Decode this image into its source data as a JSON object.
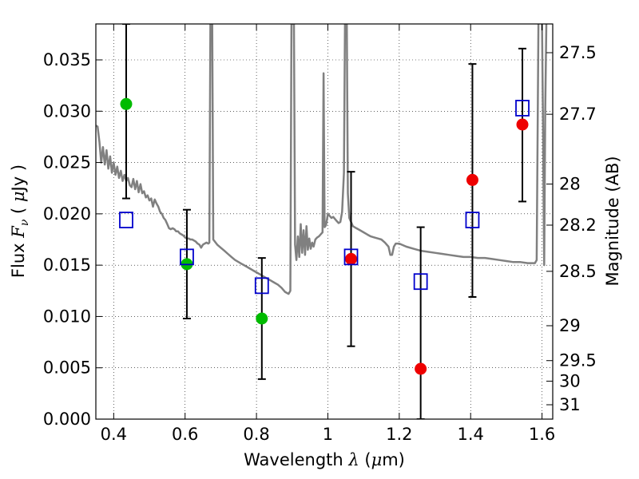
{
  "chart_data": {
    "type": "scatter",
    "xlabel": {
      "prefix": "Wavelength  ",
      "symbol": "λ",
      "suffix": " (",
      "unit_mu": "μ",
      "unit_rest": "m)"
    },
    "ylabel": {
      "prefix": "Flux  ",
      "symbol": "F",
      "sub": "ν",
      "mid": "  ( ",
      "unit_mu": "μ",
      "unit_rest": "Jy )"
    },
    "y2label": "Magnitude (AB)",
    "xlim": [
      0.35,
      1.63
    ],
    "ylim": [
      0.0,
      0.0385
    ],
    "grid": true,
    "x_ticks": [
      {
        "v": 0.4,
        "label": "0.4"
      },
      {
        "v": 0.6,
        "label": "0.6"
      },
      {
        "v": 0.8,
        "label": "0.8"
      },
      {
        "v": 1.0,
        "label": "1"
      },
      {
        "v": 1.2,
        "label": "1.2"
      },
      {
        "v": 1.4,
        "label": "1.4"
      },
      {
        "v": 1.6,
        "label": "1.6"
      }
    ],
    "y_ticks": [
      {
        "v": 0.0,
        "label": "0.000"
      },
      {
        "v": 0.005,
        "label": "0.005"
      },
      {
        "v": 0.01,
        "label": "0.010"
      },
      {
        "v": 0.015,
        "label": "0.015"
      },
      {
        "v": 0.02,
        "label": "0.020"
      },
      {
        "v": 0.025,
        "label": "0.025"
      },
      {
        "v": 0.03,
        "label": "0.030"
      },
      {
        "v": 0.035,
        "label": "0.035"
      }
    ],
    "y2_ticks": [
      {
        "flux": 0.0357,
        "label": "27.5"
      },
      {
        "flux": 0.0297,
        "label": "27.7"
      },
      {
        "flux": 0.0229,
        "label": "28"
      },
      {
        "flux": 0.0189,
        "label": "28.2"
      },
      {
        "flux": 0.0144,
        "label": "28.5"
      },
      {
        "flux": 0.0091,
        "label": "29"
      },
      {
        "flux": 0.0057,
        "label": "29.5"
      },
      {
        "flux": 0.0037,
        "label": "30"
      },
      {
        "flux": 0.0014,
        "label": "31"
      }
    ],
    "series": [
      {
        "type": "errorbar",
        "color": "#000000",
        "points": [
          {
            "x": 0.435,
            "y": 0.0307,
            "lo": 0.0215,
            "hi": 0.0385
          },
          {
            "x": 0.605,
            "y": 0.0151,
            "lo": 0.0098,
            "hi": 0.0204
          },
          {
            "x": 0.815,
            "y": 0.0098,
            "lo": 0.0039,
            "hi": 0.0157
          },
          {
            "x": 1.065,
            "y": 0.0156,
            "lo": 0.0071,
            "hi": 0.0241
          },
          {
            "x": 1.26,
            "y": 0.0049,
            "lo": 0.0,
            "hi": 0.0187
          },
          {
            "x": 1.405,
            "y": 0.0233,
            "lo": 0.0119,
            "hi": 0.0346
          },
          {
            "x": 1.545,
            "y": 0.0287,
            "lo": 0.0212,
            "hi": 0.0361
          }
        ]
      },
      {
        "type": "scatter",
        "marker": "circle",
        "color": "#00bb00",
        "points": [
          {
            "x": 0.435,
            "y": 0.0307
          },
          {
            "x": 0.605,
            "y": 0.0151
          },
          {
            "x": 0.815,
            "y": 0.0098
          }
        ]
      },
      {
        "type": "scatter",
        "marker": "circle",
        "color": "#ee0000",
        "points": [
          {
            "x": 1.065,
            "y": 0.0156
          },
          {
            "x": 1.26,
            "y": 0.0049
          },
          {
            "x": 1.405,
            "y": 0.0233
          },
          {
            "x": 1.545,
            "y": 0.0287
          }
        ]
      },
      {
        "type": "scatter",
        "marker": "open-square",
        "color": "#0000cc",
        "points": [
          {
            "x": 0.435,
            "y": 0.0194
          },
          {
            "x": 0.605,
            "y": 0.0158
          },
          {
            "x": 0.815,
            "y": 0.013
          },
          {
            "x": 1.065,
            "y": 0.0158
          },
          {
            "x": 1.26,
            "y": 0.0134
          },
          {
            "x": 1.405,
            "y": 0.0194
          },
          {
            "x": 1.545,
            "y": 0.0303
          }
        ]
      },
      {
        "type": "line",
        "color": "#808080",
        "points": [
          [
            0.35,
            0.0286
          ],
          [
            0.355,
            0.0285
          ],
          [
            0.36,
            0.027
          ],
          [
            0.365,
            0.025
          ],
          [
            0.37,
            0.0265
          ],
          [
            0.375,
            0.0248
          ],
          [
            0.38,
            0.0262
          ],
          [
            0.385,
            0.0244
          ],
          [
            0.39,
            0.0256
          ],
          [
            0.395,
            0.024
          ],
          [
            0.4,
            0.025
          ],
          [
            0.405,
            0.0238
          ],
          [
            0.41,
            0.0246
          ],
          [
            0.415,
            0.0235
          ],
          [
            0.42,
            0.0242
          ],
          [
            0.425,
            0.0232
          ],
          [
            0.43,
            0.0238
          ],
          [
            0.435,
            0.0232
          ],
          [
            0.44,
            0.0235
          ],
          [
            0.445,
            0.0228
          ],
          [
            0.45,
            0.0226
          ],
          [
            0.455,
            0.0234
          ],
          [
            0.46,
            0.0224
          ],
          [
            0.465,
            0.0232
          ],
          [
            0.47,
            0.0221
          ],
          [
            0.475,
            0.0229
          ],
          [
            0.48,
            0.022
          ],
          [
            0.485,
            0.0222
          ],
          [
            0.49,
            0.0216
          ],
          [
            0.495,
            0.0218
          ],
          [
            0.5,
            0.0213
          ],
          [
            0.505,
            0.0215
          ],
          [
            0.51,
            0.0207
          ],
          [
            0.515,
            0.0214
          ],
          [
            0.52,
            0.021
          ],
          [
            0.525,
            0.0207
          ],
          [
            0.53,
            0.0202
          ],
          [
            0.535,
            0.02
          ],
          [
            0.54,
            0.0196
          ],
          [
            0.545,
            0.0194
          ],
          [
            0.55,
            0.019
          ],
          [
            0.555,
            0.0186
          ],
          [
            0.56,
            0.0185
          ],
          [
            0.565,
            0.0186
          ],
          [
            0.57,
            0.0185
          ],
          [
            0.575,
            0.0183
          ],
          [
            0.58,
            0.0183
          ],
          [
            0.585,
            0.0181
          ],
          [
            0.59,
            0.018
          ],
          [
            0.595,
            0.0179
          ],
          [
            0.6,
            0.0177
          ],
          [
            0.605,
            0.0176
          ],
          [
            0.61,
            0.0176
          ],
          [
            0.615,
            0.0175
          ],
          [
            0.62,
            0.0175
          ],
          [
            0.625,
            0.0174
          ],
          [
            0.63,
            0.0173
          ],
          [
            0.635,
            0.0171
          ],
          [
            0.64,
            0.017
          ],
          [
            0.645,
            0.0167
          ],
          [
            0.65,
            0.017
          ],
          [
            0.655,
            0.0171
          ],
          [
            0.66,
            0.0172
          ],
          [
            0.665,
            0.0171
          ],
          [
            0.668,
            0.0172
          ],
          [
            0.671,
            0.0385
          ],
          [
            0.676,
            0.0385
          ],
          [
            0.679,
            0.0175
          ],
          [
            0.69,
            0.017
          ],
          [
            0.7,
            0.0167
          ],
          [
            0.71,
            0.0164
          ],
          [
            0.72,
            0.0161
          ],
          [
            0.73,
            0.0158
          ],
          [
            0.74,
            0.0155
          ],
          [
            0.75,
            0.0153
          ],
          [
            0.76,
            0.0151
          ],
          [
            0.77,
            0.0149
          ],
          [
            0.78,
            0.0147
          ],
          [
            0.79,
            0.0145
          ],
          [
            0.8,
            0.0143
          ],
          [
            0.81,
            0.0141
          ],
          [
            0.82,
            0.0139
          ],
          [
            0.83,
            0.0137
          ],
          [
            0.84,
            0.0135
          ],
          [
            0.85,
            0.0133
          ],
          [
            0.86,
            0.0131
          ],
          [
            0.87,
            0.0128
          ],
          [
            0.88,
            0.0124
          ],
          [
            0.89,
            0.0122
          ],
          [
            0.895,
            0.0125
          ],
          [
            0.898,
            0.0385
          ],
          [
            0.905,
            0.0385
          ],
          [
            0.908,
            0.017
          ],
          [
            0.912,
            0.0155
          ],
          [
            0.916,
            0.0178
          ],
          [
            0.92,
            0.0158
          ],
          [
            0.924,
            0.019
          ],
          [
            0.928,
            0.0162
          ],
          [
            0.932,
            0.0184
          ],
          [
            0.936,
            0.016
          ],
          [
            0.94,
            0.0188
          ],
          [
            0.944,
            0.0165
          ],
          [
            0.948,
            0.0176
          ],
          [
            0.952,
            0.0166
          ],
          [
            0.956,
            0.0172
          ],
          [
            0.96,
            0.0168
          ],
          [
            0.965,
            0.0175
          ],
          [
            0.97,
            0.0177
          ],
          [
            0.975,
            0.0178
          ],
          [
            0.98,
            0.018
          ],
          [
            0.985,
            0.0182
          ],
          [
            0.988,
            0.0337
          ],
          [
            0.991,
            0.0187
          ],
          [
            0.995,
            0.0189
          ],
          [
            1.0,
            0.02
          ],
          [
            1.005,
            0.0198
          ],
          [
            1.01,
            0.0196
          ],
          [
            1.015,
            0.0197
          ],
          [
            1.02,
            0.0195
          ],
          [
            1.025,
            0.0193
          ],
          [
            1.03,
            0.0191
          ],
          [
            1.035,
            0.0192
          ],
          [
            1.04,
            0.0202
          ],
          [
            1.045,
            0.024
          ],
          [
            1.048,
            0.0385
          ],
          [
            1.053,
            0.0385
          ],
          [
            1.056,
            0.022
          ],
          [
            1.06,
            0.0196
          ],
          [
            1.07,
            0.0188
          ],
          [
            1.08,
            0.0186
          ],
          [
            1.09,
            0.0184
          ],
          [
            1.1,
            0.0182
          ],
          [
            1.11,
            0.018
          ],
          [
            1.12,
            0.0178
          ],
          [
            1.13,
            0.0177
          ],
          [
            1.14,
            0.0176
          ],
          [
            1.15,
            0.0175
          ],
          [
            1.16,
            0.0172
          ],
          [
            1.17,
            0.0168
          ],
          [
            1.175,
            0.016
          ],
          [
            1.18,
            0.016
          ],
          [
            1.185,
            0.0168
          ],
          [
            1.19,
            0.0171
          ],
          [
            1.2,
            0.0171
          ],
          [
            1.22,
            0.0168
          ],
          [
            1.24,
            0.0166
          ],
          [
            1.26,
            0.0164
          ],
          [
            1.28,
            0.0163
          ],
          [
            1.3,
            0.0162
          ],
          [
            1.32,
            0.0161
          ],
          [
            1.34,
            0.016
          ],
          [
            1.36,
            0.0159
          ],
          [
            1.38,
            0.0158
          ],
          [
            1.4,
            0.0158
          ],
          [
            1.42,
            0.0157
          ],
          [
            1.44,
            0.0157
          ],
          [
            1.46,
            0.0156
          ],
          [
            1.48,
            0.0155
          ],
          [
            1.5,
            0.0154
          ],
          [
            1.52,
            0.0153
          ],
          [
            1.54,
            0.0153
          ],
          [
            1.56,
            0.0152
          ],
          [
            1.58,
            0.0152
          ],
          [
            1.585,
            0.0155
          ],
          [
            1.59,
            0.0385
          ]
        ]
      },
      {
        "type": "line",
        "color": "#808080",
        "points": [
          [
            1.6,
            0.0385
          ],
          [
            1.603,
            0.028
          ],
          [
            1.606,
            0.015
          ],
          [
            1.609,
            0.03
          ],
          [
            1.612,
            0.0385
          ]
        ]
      }
    ]
  }
}
